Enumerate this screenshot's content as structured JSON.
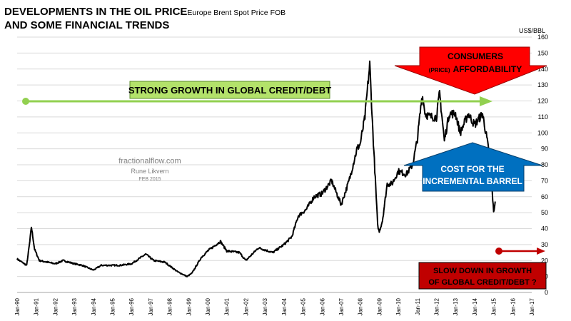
{
  "title": {
    "main": "DEVELOPMENTS IN THE OIL PRICE",
    "sub": "Europe Brent Spot Price FOB",
    "line2": "AND SOME FINANCIAL TRENDS"
  },
  "unit_label": "US$/BBL",
  "credits": {
    "site": "fractionalflow.com",
    "author": "Rune Likvern",
    "date": "FEB 2015"
  },
  "colors": {
    "series": "#000000",
    "credit_arrow": "#92D050",
    "credit_box": "#B3E26A",
    "consumer_arrow": "#FF0000",
    "cost_arrow": "#0070C0",
    "slowdown_arrow": "#C00000",
    "slowdown_box": "#C00000",
    "grid": "#D9D9D9"
  },
  "annotations": {
    "credit_growth": "STRONG GROWTH IN GLOBAL CREDIT/DEBT",
    "consumers_line1": "CONSUMERS",
    "consumers_small": "(PRICE)",
    "consumers_line2": "AFFORDABILITY",
    "cost_line1": "COST FOR THE",
    "cost_line2": "INCREMENTAL BARREL",
    "slowdown_line1": "SLOW DOWN IN GROWTH",
    "slowdown_line2": "OF  GLOBAL CREDIT/DEBT ?"
  },
  "chart_data": {
    "type": "line",
    "ylim": [
      0,
      160
    ],
    "y_ticks": [
      0,
      10,
      20,
      30,
      40,
      50,
      60,
      70,
      80,
      90,
      100,
      110,
      120,
      130,
      140,
      150,
      160
    ],
    "x_ticks": [
      "Jan-90",
      "Jan-91",
      "Jan-92",
      "Jan-93",
      "Jan-94",
      "Jan-95",
      "Jan-96",
      "Jan-97",
      "Jan-98",
      "Jan-99",
      "Jan-00",
      "Jan-01",
      "Jan-02",
      "Jan-03",
      "Jan-04",
      "Jan-05",
      "Jan-06",
      "Jan-07",
      "Jan-08",
      "Jan-09",
      "Jan-10",
      "Jan-11",
      "Jan-12",
      "Jan-13",
      "Jan-14",
      "Jan-15",
      "Jan-16",
      "Jan-17"
    ],
    "grid": "horizontal",
    "series": [
      {
        "x": [
          "1990-01",
          "1990-07",
          "1990-09",
          "1990-10",
          "1990-12",
          "1991-03",
          "1992-01",
          "1992-06",
          "1993-01",
          "1993-06",
          "1994-01",
          "1994-06",
          "1995-01",
          "1995-06",
          "1996-01",
          "1996-10",
          "1997-03",
          "1997-10",
          "1998-06",
          "1998-12",
          "1999-03",
          "1999-09",
          "2000-01",
          "2000-09",
          "2001-01",
          "2001-09",
          "2002-01",
          "2002-09",
          "2003-03",
          "2003-06",
          "2004-01",
          "2004-06",
          "2004-10",
          "2005-03",
          "2005-08",
          "2006-01",
          "2006-07",
          "2007-01",
          "2007-06",
          "2007-11",
          "2008-01",
          "2008-04",
          "2008-07",
          "2008-09",
          "2008-12",
          "2009-01",
          "2009-03",
          "2009-06",
          "2009-09",
          "2010-01",
          "2010-06",
          "2010-10",
          "2011-01",
          "2011-04",
          "2011-06",
          "2011-09",
          "2012-01",
          "2012-03",
          "2012-06",
          "2012-09",
          "2013-01",
          "2013-04",
          "2013-09",
          "2014-01",
          "2014-06",
          "2014-09",
          "2014-11",
          "2015-01",
          "2015-02"
        ],
        "values": [
          21,
          17,
          32,
          41,
          27,
          20,
          18,
          20,
          18,
          17,
          14,
          17,
          17,
          17,
          18,
          24,
          20,
          19,
          13,
          10,
          12,
          22,
          26,
          32,
          26,
          25,
          20,
          28,
          26,
          25,
          30,
          35,
          48,
          52,
          60,
          62,
          70,
          55,
          70,
          90,
          93,
          110,
          143,
          100,
          42,
          38,
          45,
          68,
          68,
          76,
          74,
          80,
          96,
          124,
          112,
          110,
          110,
          125,
          95,
          112,
          112,
          100,
          112,
          105,
          112,
          95,
          80,
          50,
          57
        ]
      }
    ]
  }
}
